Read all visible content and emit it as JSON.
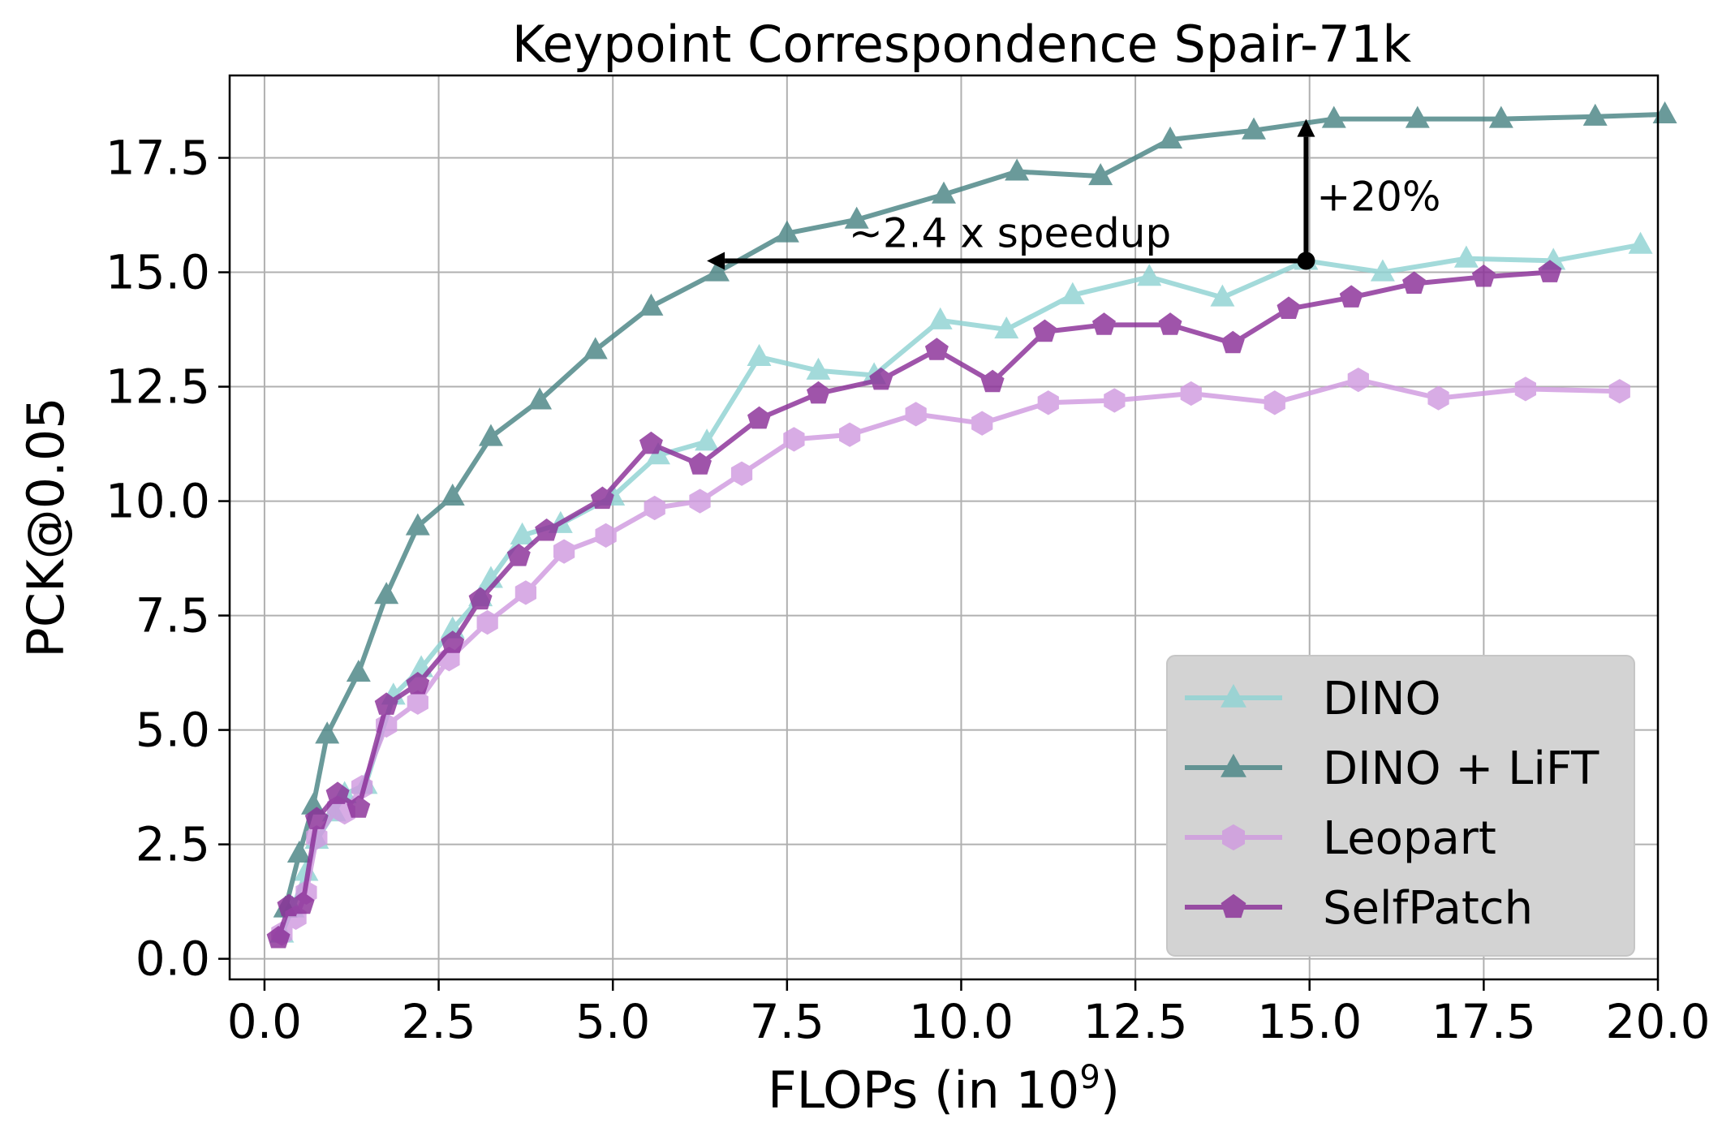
{
  "chart_data": {
    "type": "line",
    "title": "Keypoint Correspondence Spair-71k",
    "xlabel": "FLOPs (in 10",
    "xlabel_sup": "9",
    "xlabel_close": ")",
    "ylabel": "PCK@0.05",
    "xlim": [
      -0.5,
      20.0
    ],
    "ylim": [
      -0.45,
      19.3
    ],
    "xticks": [
      0.0,
      2.5,
      5.0,
      7.5,
      10.0,
      12.5,
      15.0,
      17.5,
      20.0
    ],
    "xtick_labels": [
      "0.0",
      "2.5",
      "5.0",
      "7.5",
      "10.0",
      "12.5",
      "15.0",
      "17.5",
      "20.0"
    ],
    "yticks": [
      0.0,
      2.5,
      5.0,
      7.5,
      10.0,
      12.5,
      15.0,
      17.5
    ],
    "ytick_labels": [
      "0.0",
      "2.5",
      "5.0",
      "7.5",
      "10.0",
      "12.5",
      "15.0",
      "17.5"
    ],
    "grid": true,
    "legend_position": "lower-right",
    "series": [
      {
        "name": "DINO",
        "color": "#8fd3d3",
        "marker": "triangle",
        "x": [
          0.25,
          0.4,
          0.6,
          0.75,
          1.0,
          1.15,
          1.45,
          1.85,
          2.25,
          2.7,
          3.1,
          3.25,
          3.7,
          4.25,
          5.0,
          5.65,
          6.35,
          7.1,
          7.95,
          8.75,
          9.7,
          10.65,
          11.6,
          12.7,
          13.75,
          14.95,
          16.05,
          17.25,
          18.5,
          19.75
        ],
        "y": [
          0.55,
          1.1,
          1.9,
          2.6,
          3.2,
          3.6,
          3.8,
          5.75,
          6.35,
          7.2,
          7.9,
          8.3,
          9.25,
          9.5,
          10.1,
          11.0,
          11.3,
          13.15,
          12.85,
          12.75,
          13.95,
          13.75,
          14.5,
          14.9,
          14.45,
          15.25,
          15.0,
          15.3,
          15.25,
          15.6
        ]
      },
      {
        "name": "DINO + LiFT",
        "color": "#4a8585",
        "marker": "triangle",
        "x": [
          0.3,
          0.5,
          0.7,
          0.9,
          1.35,
          1.75,
          2.2,
          2.7,
          3.25,
          3.95,
          4.75,
          5.55,
          6.5,
          7.5,
          8.5,
          9.75,
          10.8,
          12.0,
          13.0,
          14.2,
          15.35,
          16.55,
          17.75,
          19.1,
          20.1
        ],
        "y": [
          1.1,
          2.3,
          3.35,
          4.9,
          6.25,
          7.95,
          9.45,
          10.1,
          11.4,
          12.2,
          13.3,
          14.25,
          15.0,
          15.85,
          16.15,
          16.7,
          17.2,
          17.1,
          17.9,
          18.1,
          18.35,
          18.35,
          18.35,
          18.4,
          18.45
        ]
      },
      {
        "name": "Leopart",
        "color": "#d09ae0",
        "marker": "hexagon",
        "x": [
          0.25,
          0.45,
          0.6,
          0.75,
          1.05,
          1.15,
          1.4,
          1.75,
          2.2,
          2.65,
          3.2,
          3.75,
          4.3,
          4.9,
          5.6,
          6.25,
          6.85,
          7.6,
          8.4,
          9.35,
          10.3,
          11.25,
          12.2,
          13.3,
          14.5,
          15.7,
          16.85,
          18.1,
          19.45
        ],
        "y": [
          0.55,
          0.9,
          1.45,
          2.65,
          3.3,
          3.2,
          3.75,
          5.1,
          5.6,
          6.55,
          7.35,
          8.0,
          8.9,
          9.25,
          9.85,
          10.0,
          10.6,
          11.35,
          11.45,
          11.9,
          11.7,
          12.15,
          12.2,
          12.35,
          12.15,
          12.65,
          12.25,
          12.45,
          12.4
        ]
      },
      {
        "name": "SelfPatch",
        "color": "#8b2f98",
        "marker": "pentagon",
        "x": [
          0.2,
          0.35,
          0.55,
          0.75,
          1.05,
          1.35,
          1.75,
          2.2,
          2.7,
          3.1,
          3.65,
          4.05,
          4.85,
          5.55,
          6.25,
          7.1,
          7.95,
          8.85,
          9.65,
          10.45,
          11.2,
          12.05,
          13.0,
          13.9,
          14.7,
          15.6,
          16.5,
          17.5,
          18.45
        ],
        "y": [
          0.45,
          1.15,
          1.2,
          3.05,
          3.6,
          3.3,
          5.55,
          6.0,
          6.9,
          7.85,
          8.8,
          9.35,
          10.05,
          11.25,
          10.8,
          11.8,
          12.35,
          12.65,
          13.3,
          12.6,
          13.7,
          13.85,
          13.85,
          13.45,
          14.2,
          14.45,
          14.75,
          14.9,
          15.0
        ]
      }
    ],
    "annotations": {
      "speedup_text": "~2.4 x speedup",
      "gain_text": "+20%",
      "speedup_arrow": {
        "from": [
          14.95,
          15.25
        ],
        "to": [
          6.35,
          15.25
        ]
      },
      "gain_arrow": {
        "from": [
          14.95,
          15.25
        ],
        "to": [
          14.95,
          18.35
        ]
      },
      "speedup_text_at": [
        10.7,
        15.55
      ],
      "gain_text_at": [
        15.1,
        16.35
      ]
    }
  }
}
